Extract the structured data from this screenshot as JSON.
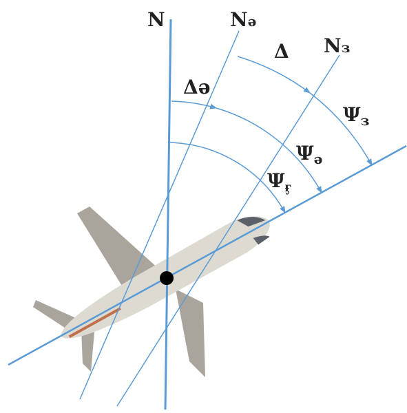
{
  "labels": {
    "n": "N",
    "n_a": "N",
    "n_a_sub": "ә",
    "n_z": "N",
    "n_z_sub": "з",
    "delta": "Δ",
    "delta_a": "Δә",
    "psi_z": "Ψ",
    "psi_z_sub": "з",
    "psi_a": "Ψ",
    "psi_a_sub": "ә",
    "psi_g": "Ψ",
    "psi_g_sub": "ӻ"
  }
}
